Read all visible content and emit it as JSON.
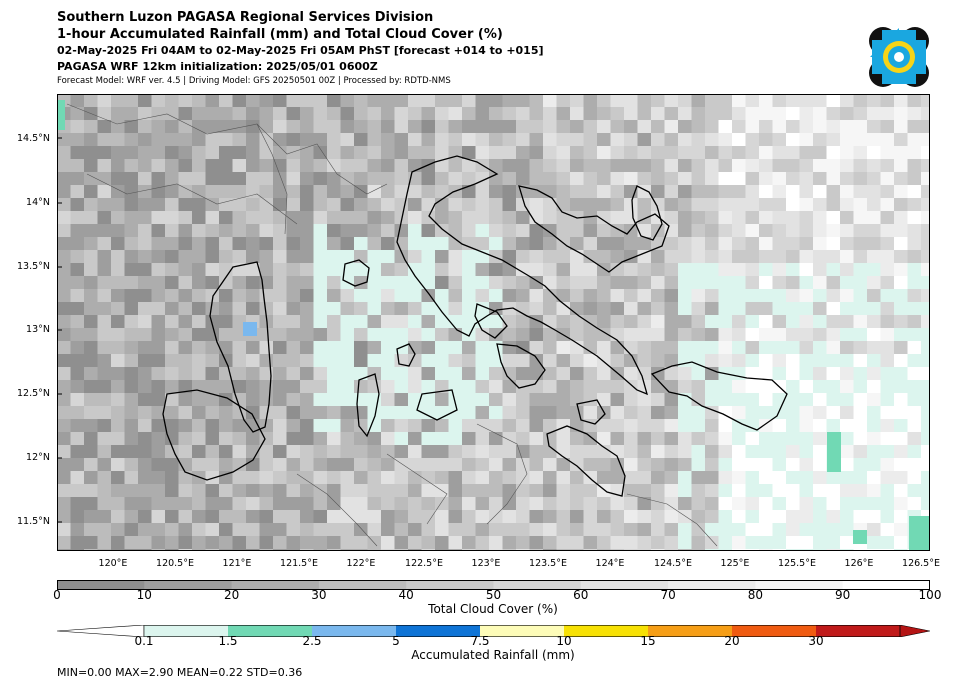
{
  "header": {
    "title_line1": "Southern Luzon PAGASA Regional Services Division",
    "title_line2": "1-hour Accumulated Rainfall (mm) and Total Cloud Cover (%)",
    "valid_period": "02-May-2025 Fri 04AM to 02-May-2025 Fri 05AM PhST [forecast +014 to +015]",
    "initialization": "PAGASA WRF 12km initialization: 2025/05/01 0600Z",
    "model_info": "Forecast Model: WRF ver. 4.5 | Driving Model: GFS 20250501 00Z | Processed by: RDTD-NMS"
  },
  "logo": {
    "name": "PAGASA",
    "colors": [
      "#111111",
      "#1aa7e0",
      "#f7d417"
    ]
  },
  "map": {
    "lon_ticks": [
      "120°E",
      "120.5°E",
      "121°E",
      "121.5°E",
      "122°E",
      "122.5°E",
      "123°E",
      "123.5°E",
      "124°E",
      "124.5°E",
      "125°E",
      "125.5°E",
      "126°E",
      "126.5°E"
    ],
    "lat_ticks": [
      "14.5°N",
      "14°N",
      "13.5°N",
      "13°N",
      "12.5°N",
      "12°N",
      "11.5°N"
    ],
    "colors": {
      "coast": "#000000",
      "province": "#555555",
      "sea_low_rain": "#dcf5ee",
      "rain_1_5": "#71d9b4",
      "rain_2_5": "#7ab8ee"
    }
  },
  "cloud_cover_bar": {
    "label": "Total Cloud Cover (%)",
    "ticks": [
      "0",
      "10",
      "20",
      "30",
      "40",
      "50",
      "60",
      "70",
      "80",
      "90",
      "100"
    ],
    "colors": [
      "#8f8f8f",
      "#9e9e9e",
      "#adadad",
      "#bcbcbc",
      "#c9c9c9",
      "#d6d6d6",
      "#e2e2e2",
      "#ececec",
      "#f6f6f6",
      "#ffffff"
    ]
  },
  "rainfall_bar": {
    "label": "Accumulated Rainfall (mm)",
    "ticks": [
      "0.1",
      "1.5",
      "2.5",
      "5",
      "7.5",
      "10",
      "15",
      "20",
      "30"
    ],
    "colors": [
      "#ffffff",
      "#dcf5ee",
      "#71d9b4",
      "#7ab8ee",
      "#0f74d6",
      "#fdfcb8",
      "#f7e104",
      "#f69e16",
      "#f05b11",
      "#c01a1a",
      "#b41414"
    ]
  },
  "stats": "MIN=0.00   MAX=2.90   MEAN=0.22   STD=0.36"
}
